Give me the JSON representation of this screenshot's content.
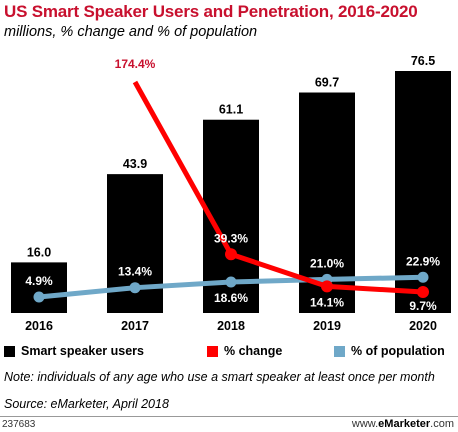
{
  "header": {
    "title": "US Smart Speaker Users and Penetration, 2016-2020",
    "subtitle": "millions, % change and % of population"
  },
  "chart_data": {
    "type": "bar",
    "title": "US Smart Speaker Users and Penetration, 2016-2020",
    "subtitle": "millions, % change and % of population",
    "categories": [
      "2016",
      "2017",
      "2018",
      "2019",
      "2020"
    ],
    "series": [
      {
        "name": "Smart speaker users",
        "kind": "bar",
        "values": [
          16.0,
          43.9,
          61.1,
          69.7,
          76.5
        ],
        "labels": [
          "16.0",
          "43.9",
          "61.1",
          "69.7",
          "76.5"
        ],
        "color": "#000000"
      },
      {
        "name": "% change",
        "kind": "line",
        "values": [
          null,
          174.4,
          39.3,
          14.1,
          9.7
        ],
        "labels": [
          "",
          "174.4%",
          "39.3%",
          "14.1%",
          "9.7%"
        ],
        "color": "#ff0000"
      },
      {
        "name": "% of population",
        "kind": "line",
        "values": [
          4.9,
          13.4,
          18.6,
          21.0,
          22.9
        ],
        "labels": [
          "4.9%",
          "13.4%",
          "18.6%",
          "21.0%",
          "22.9%"
        ],
        "color": "#6fa8c8"
      }
    ],
    "grid": false,
    "legend_position": "bottom"
  },
  "legend": {
    "items": [
      {
        "label": "Smart speaker users",
        "color": "#000000"
      },
      {
        "label": "% change",
        "color": "#ff0000"
      },
      {
        "label": "% of population",
        "color": "#6fa8c8"
      }
    ]
  },
  "footer": {
    "note": "Note: individuals of any age who use a smart speaker at least once per month",
    "source": "Source: eMarketer, April 2018",
    "chart_id": "237683",
    "brand_prefix": "www.",
    "brand_name": "eMarketer",
    "brand_suffix": ".com"
  }
}
